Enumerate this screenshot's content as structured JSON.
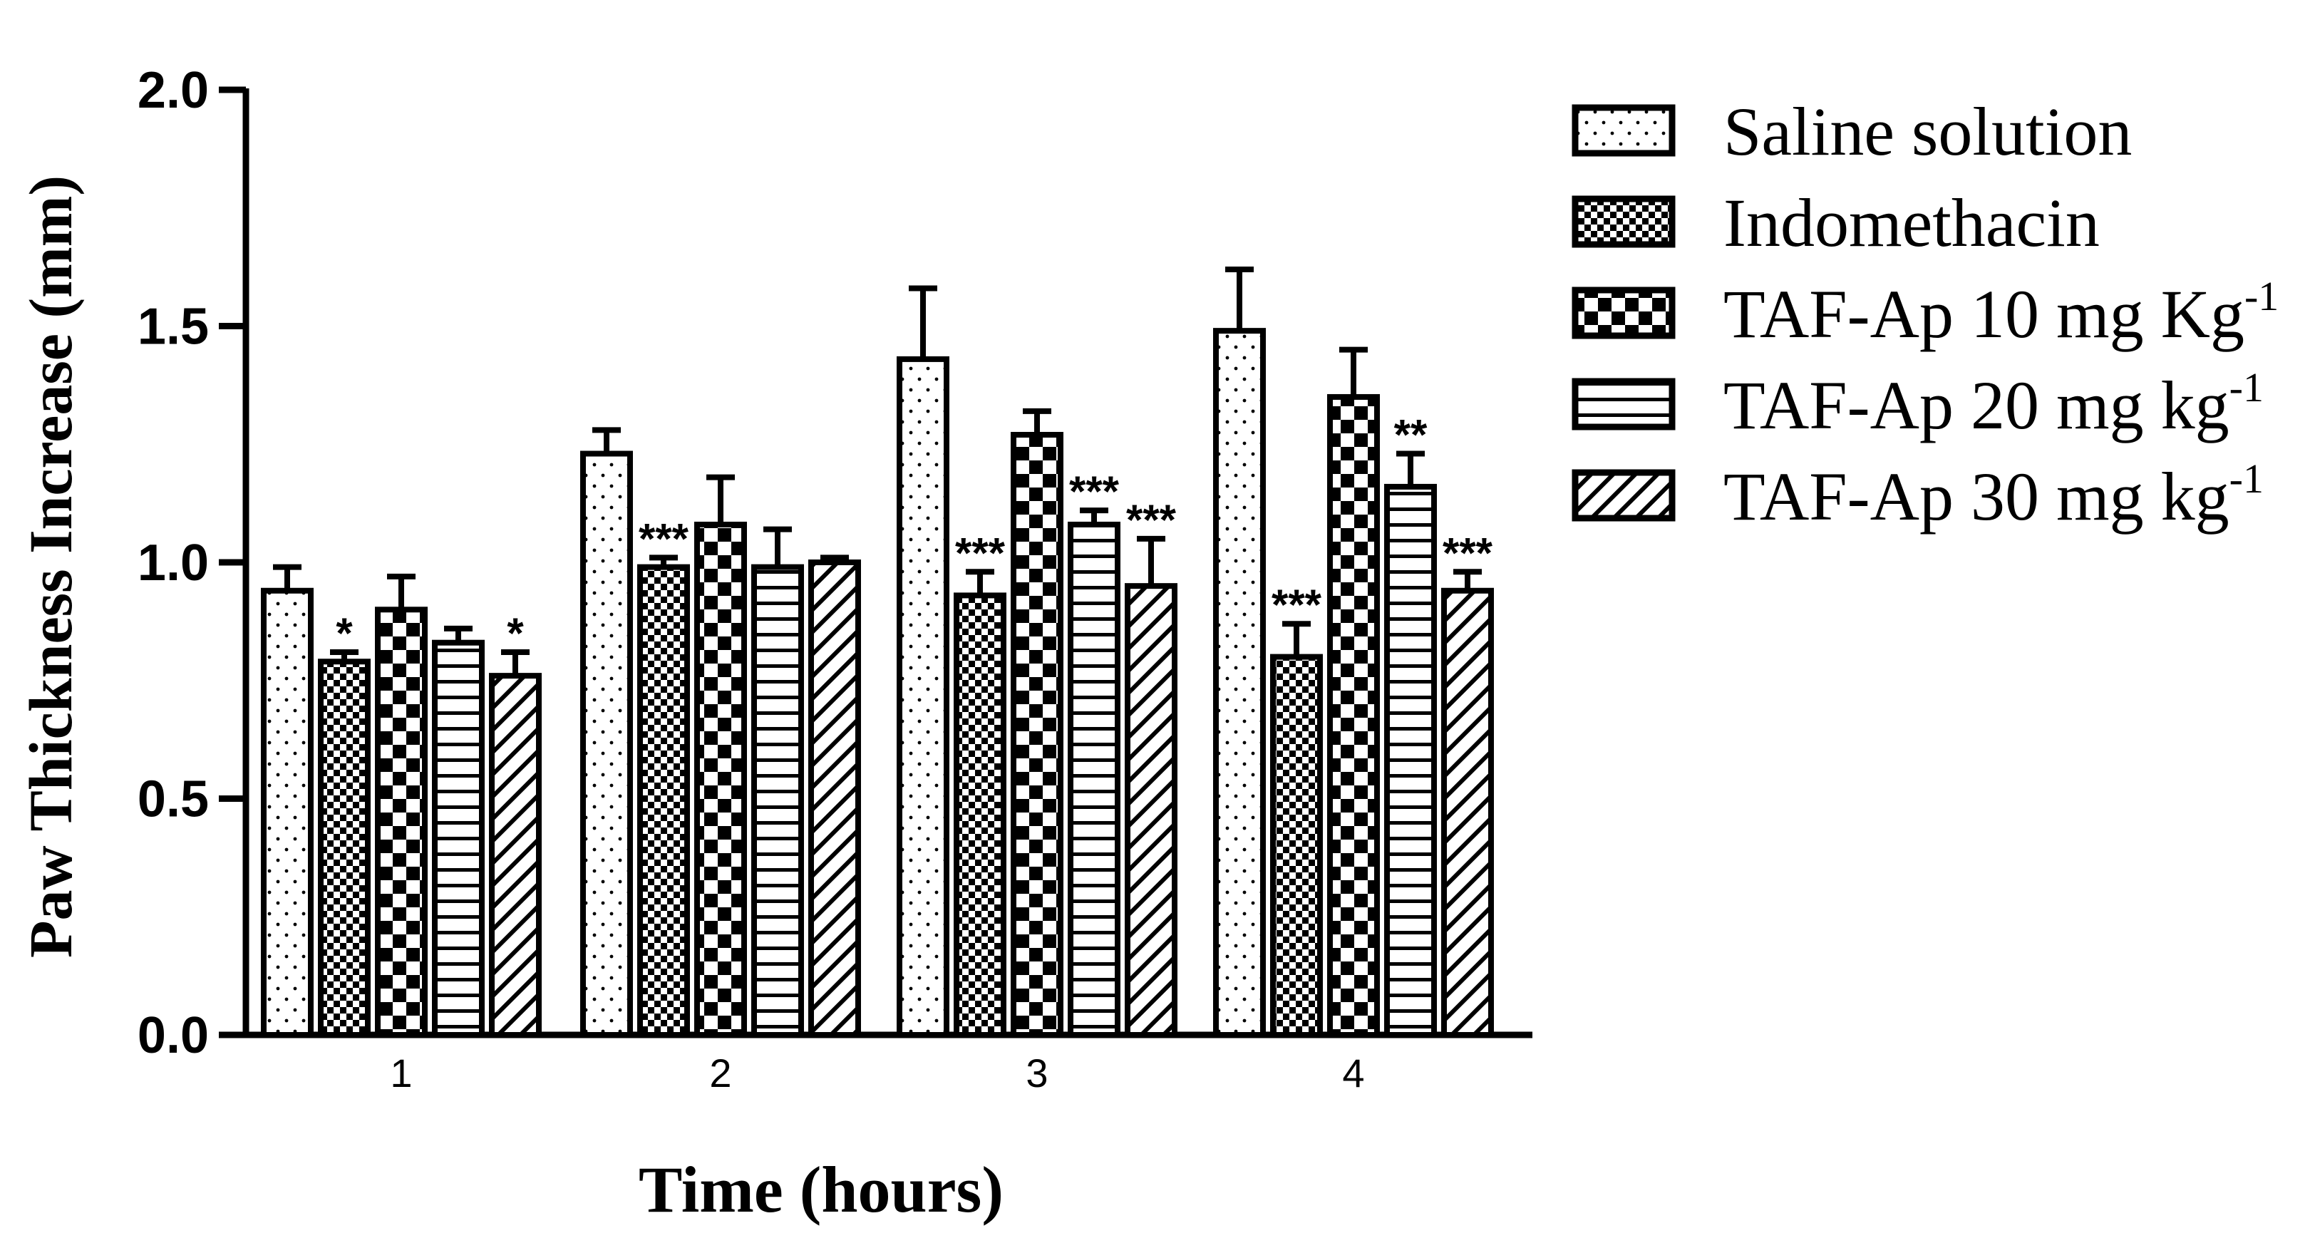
{
  "chart_data": {
    "type": "bar",
    "title": "",
    "xlabel": "Time (hours)",
    "ylabel": "Paw Thickness Increase (mm)",
    "ylim": [
      0,
      2.0
    ],
    "yticks": [
      "0.0",
      "0.5",
      "1.0",
      "1.5",
      "2.0"
    ],
    "categories": [
      "1",
      "2",
      "3",
      "4"
    ],
    "legend_position": "right",
    "series": [
      {
        "name": "Saline solution",
        "sup": "",
        "pattern": "dots",
        "values": [
          0.94,
          1.23,
          1.43,
          1.49
        ],
        "errors": [
          0.05,
          0.05,
          0.15,
          0.13
        ],
        "significance": [
          "",
          "",
          "",
          ""
        ]
      },
      {
        "name": "Indomethacin",
        "sup": "",
        "pattern": "checker-small",
        "values": [
          0.79,
          0.99,
          0.93,
          0.8
        ],
        "errors": [
          0.02,
          0.02,
          0.05,
          0.07
        ],
        "significance": [
          "*",
          "***",
          "***",
          "***"
        ]
      },
      {
        "name": "TAF-Ap 10 mg Kg",
        "sup": "-1",
        "pattern": "checker-large",
        "values": [
          0.9,
          1.08,
          1.27,
          1.35
        ],
        "errors": [
          0.07,
          0.1,
          0.05,
          0.1
        ],
        "significance": [
          "",
          "",
          "",
          ""
        ]
      },
      {
        "name": "TAF-Ap 20 mg kg",
        "sup": "-1",
        "pattern": "hlines",
        "values": [
          0.83,
          0.99,
          1.08,
          1.16
        ],
        "errors": [
          0.03,
          0.08,
          0.03,
          0.07
        ],
        "significance": [
          "",
          "",
          "***",
          "**"
        ]
      },
      {
        "name": "TAF-Ap 30 mg kg",
        "sup": "-1",
        "pattern": "diagonal",
        "values": [
          0.76,
          1.0,
          0.95,
          0.94
        ],
        "errors": [
          0.05,
          0.01,
          0.1,
          0.04
        ],
        "significance": [
          "*",
          "",
          "***",
          "***"
        ]
      }
    ]
  }
}
